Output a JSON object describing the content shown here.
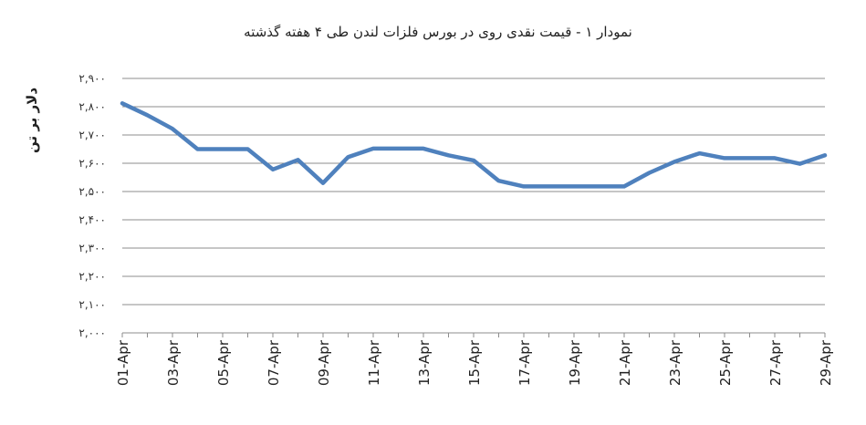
{
  "chart_data": {
    "type": "line",
    "title": "نمودار ۱ - قیمت نقدی روی  در بورس فلزات لندن طی ۴ هفته گذشته",
    "ylabel": "دلار بر تن",
    "xlabel": "",
    "ylim": [
      2000,
      2900
    ],
    "y_ticks": [
      2000,
      2100,
      2200,
      2300,
      2400,
      2500,
      2600,
      2700,
      2800,
      2900
    ],
    "y_tick_labels": [
      "۲,۰۰۰",
      "۲,۱۰۰",
      "۲,۲۰۰",
      "۲,۳۰۰",
      "۲,۴۰۰",
      "۲,۵۰۰",
      "۲,۶۰۰",
      "۲,۷۰۰",
      "۲,۸۰۰",
      "۲,۹۰۰"
    ],
    "grid": true,
    "x": [
      "01-Apr",
      "02-Apr",
      "03-Apr",
      "04-Apr",
      "05-Apr",
      "06-Apr",
      "07-Apr",
      "08-Apr",
      "09-Apr",
      "10-Apr",
      "11-Apr",
      "12-Apr",
      "13-Apr",
      "14-Apr",
      "15-Apr",
      "16-Apr",
      "17-Apr",
      "18-Apr",
      "19-Apr",
      "20-Apr",
      "21-Apr",
      "22-Apr",
      "23-Apr",
      "24-Apr",
      "25-Apr",
      "26-Apr",
      "27-Apr",
      "28-Apr",
      "29-Apr"
    ],
    "x_tick_labels": [
      "01-Apr",
      "03-Apr",
      "05-Apr",
      "07-Apr",
      "09-Apr",
      "11-Apr",
      "13-Apr",
      "15-Apr",
      "17-Apr",
      "19-Apr",
      "21-Apr",
      "23-Apr",
      "25-Apr",
      "27-Apr",
      "29-Apr"
    ],
    "series": [
      {
        "color": "#4f81bd",
        "values": [
          2812,
          2770,
          2722,
          2650,
          2650,
          2650,
          2578,
          2612,
          2530,
          2622,
          2652,
          2652,
          2652,
          2628,
          2610,
          2538,
          2518,
          2518,
          2518,
          2518,
          2518,
          2566,
          2605,
          2635,
          2618,
          2618,
          2618,
          2598,
          2628
        ]
      }
    ]
  }
}
